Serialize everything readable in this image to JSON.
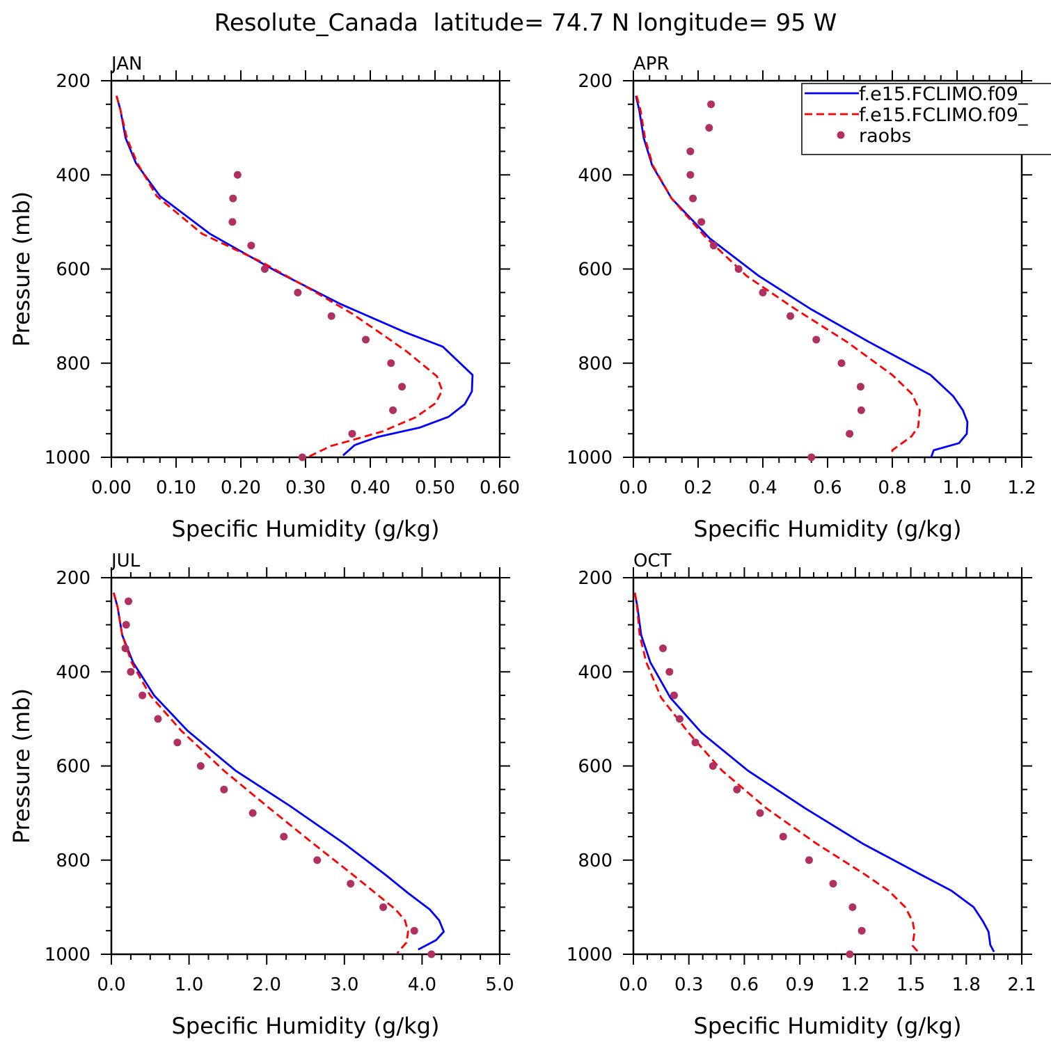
{
  "figure": {
    "title": "Resolute_Canada  latitude= 74.7 N longitude= 95 W"
  },
  "legend": {
    "entries": [
      {
        "label": "f.e15.FCLIMO.f09_",
        "style": "solid",
        "color": "#0000ff"
      },
      {
        "label": "f.e15.FCLIMO.f09_",
        "style": "dashed",
        "color": "#ff0000"
      },
      {
        "label": "raobs",
        "style": "dot",
        "color": "#b03060"
      }
    ]
  },
  "chart_data": [
    {
      "type": "line",
      "title": "JAN",
      "xlabel": "Specific Humidity (g/kg)",
      "ylabel": "Pressure (mb)",
      "xlim": [
        0,
        0.6
      ],
      "ylim": [
        200,
        1000
      ],
      "y_inverted": true,
      "xticks": [
        "0.00",
        "0.10",
        "0.20",
        "0.30",
        "0.40",
        "0.50",
        "0.60"
      ],
      "yticks": [
        "200",
        "400",
        "600",
        "800",
        "1000"
      ],
      "series": [
        {
          "name": "f.e15.FCLIMO.f09_",
          "style": "solid",
          "color": "#0000ff",
          "points": [
            [
              0.008,
              232
            ],
            [
              0.014,
              262
            ],
            [
              0.022,
              322
            ],
            [
              0.038,
              375
            ],
            [
              0.075,
              445
            ],
            [
              0.152,
              525
            ],
            [
              0.255,
              605
            ],
            [
              0.355,
              675
            ],
            [
              0.455,
              735
            ],
            [
              0.512,
              765
            ],
            [
              0.558,
              825
            ],
            [
              0.557,
              860
            ],
            [
              0.546,
              887
            ],
            [
              0.521,
              914
            ],
            [
              0.476,
              937
            ],
            [
              0.411,
              957
            ],
            [
              0.376,
              974
            ],
            [
              0.358,
              996
            ]
          ]
        },
        {
          "name": "f.e15.FCLIMO.f09_",
          "style": "dashed",
          "color": "#ff0000",
          "points": [
            [
              0.008,
              232
            ],
            [
              0.014,
              262
            ],
            [
              0.024,
              322
            ],
            [
              0.04,
              375
            ],
            [
              0.07,
              445
            ],
            [
              0.14,
              525
            ],
            [
              0.232,
              585
            ],
            [
              0.31,
              645
            ],
            [
              0.372,
              695
            ],
            [
              0.425,
              745
            ],
            [
              0.456,
              775
            ],
            [
              0.503,
              828
            ],
            [
              0.511,
              858
            ],
            [
              0.501,
              885
            ],
            [
              0.47,
              915
            ],
            [
              0.419,
              945
            ],
            [
              0.363,
              967
            ],
            [
              0.339,
              976
            ],
            [
              0.306,
              998
            ]
          ]
        },
        {
          "name": "raobs",
          "style": "dot",
          "color": "#b03060",
          "points": [
            [
              0.195,
              400
            ],
            [
              0.188,
              450
            ],
            [
              0.187,
              500
            ],
            [
              0.216,
              550
            ],
            [
              0.237,
              600
            ],
            [
              0.288,
              650
            ],
            [
              0.34,
              700
            ],
            [
              0.393,
              750
            ],
            [
              0.432,
              800
            ],
            [
              0.449,
              850
            ],
            [
              0.435,
              900
            ],
            [
              0.372,
              950
            ],
            [
              0.295,
              1000
            ]
          ]
        }
      ]
    },
    {
      "type": "line",
      "title": "APR",
      "xlabel": "Specific Humidity (g/kg)",
      "ylabel": "",
      "xlim": [
        0,
        1.2
      ],
      "ylim": [
        200,
        1000
      ],
      "y_inverted": true,
      "xticks": [
        "0.0",
        "0.2",
        "0.4",
        "0.6",
        "0.8",
        "1.0",
        "1.2"
      ],
      "yticks": [
        "200",
        "400",
        "600",
        "800",
        "1000"
      ],
      "series": [
        {
          "name": "f.e15.FCLIMO.f09_",
          "style": "solid",
          "color": "#0000ff",
          "points": [
            [
              0.008,
              232
            ],
            [
              0.018,
              262
            ],
            [
              0.032,
              322
            ],
            [
              0.058,
              380
            ],
            [
              0.118,
              450
            ],
            [
              0.236,
              535
            ],
            [
              0.388,
              615
            ],
            [
              0.548,
              685
            ],
            [
              0.728,
              755
            ],
            [
              0.918,
              825
            ],
            [
              0.988,
              870
            ],
            [
              1.018,
              900
            ],
            [
              1.032,
              925
            ],
            [
              1.03,
              950
            ],
            [
              1.006,
              970
            ],
            [
              0.928,
              985
            ],
            [
              0.92,
              1000
            ]
          ]
        },
        {
          "name": "f.e15.FCLIMO.f09_",
          "style": "dashed",
          "color": "#ff0000",
          "points": [
            [
              0.01,
              232
            ],
            [
              0.022,
              262
            ],
            [
              0.036,
              322
            ],
            [
              0.06,
              380
            ],
            [
              0.118,
              450
            ],
            [
              0.22,
              530
            ],
            [
              0.35,
              615
            ],
            [
              0.5,
              685
            ],
            [
              0.66,
              755
            ],
            [
              0.8,
              825
            ],
            [
              0.86,
              865
            ],
            [
              0.885,
              900
            ],
            [
              0.88,
              935
            ],
            [
              0.86,
              955
            ],
            [
              0.83,
              970
            ],
            [
              0.8,
              985
            ],
            [
              0.8,
              998
            ]
          ]
        },
        {
          "name": "raobs",
          "style": "dot",
          "color": "#b03060",
          "points": [
            [
              0.24,
              250
            ],
            [
              0.234,
              300
            ],
            [
              0.176,
              350
            ],
            [
              0.176,
              400
            ],
            [
              0.184,
              450
            ],
            [
              0.21,
              500
            ],
            [
              0.248,
              550
            ],
            [
              0.325,
              600
            ],
            [
              0.4,
              650
            ],
            [
              0.485,
              700
            ],
            [
              0.565,
              750
            ],
            [
              0.643,
              800
            ],
            [
              0.702,
              850
            ],
            [
              0.704,
              900
            ],
            [
              0.668,
              950
            ],
            [
              0.55,
              1000
            ]
          ]
        }
      ]
    },
    {
      "type": "line",
      "title": "JUL",
      "xlabel": "Specific Humidity (g/kg)",
      "ylabel": "Pressure (mb)",
      "xlim": [
        0,
        5.0
      ],
      "ylim": [
        200,
        1000
      ],
      "y_inverted": true,
      "xticks": [
        "0.0",
        "1.0",
        "2.0",
        "3.0",
        "4.0",
        "5.0"
      ],
      "yticks": [
        "200",
        "400",
        "600",
        "800",
        "1000"
      ],
      "series": [
        {
          "name": "f.e15.FCLIMO.f09_",
          "style": "solid",
          "color": "#0000ff",
          "points": [
            [
              0.03,
              232
            ],
            [
              0.08,
              262
            ],
            [
              0.14,
              322
            ],
            [
              0.28,
              380
            ],
            [
              0.55,
              450
            ],
            [
              0.98,
              525
            ],
            [
              1.6,
              610
            ],
            [
              2.3,
              685
            ],
            [
              3.0,
              765
            ],
            [
              3.52,
              830
            ],
            [
              3.82,
              870
            ],
            [
              4.1,
              905
            ],
            [
              4.22,
              928
            ],
            [
              4.28,
              952
            ],
            [
              4.18,
              970
            ],
            [
              3.95,
              990
            ]
          ]
        },
        {
          "name": "f.e15.FCLIMO.f09_",
          "style": "dashed",
          "color": "#ff0000",
          "points": [
            [
              0.03,
              232
            ],
            [
              0.08,
              262
            ],
            [
              0.14,
              322
            ],
            [
              0.26,
              380
            ],
            [
              0.5,
              450
            ],
            [
              0.9,
              525
            ],
            [
              1.45,
              610
            ],
            [
              2.0,
              685
            ],
            [
              2.6,
              765
            ],
            [
              3.1,
              830
            ],
            [
              3.4,
              870
            ],
            [
              3.66,
              905
            ],
            [
              3.78,
              928
            ],
            [
              3.82,
              952
            ],
            [
              3.8,
              975
            ],
            [
              3.72,
              990
            ],
            [
              3.68,
              998
            ]
          ]
        },
        {
          "name": "raobs",
          "style": "dot",
          "color": "#b03060",
          "points": [
            [
              0.22,
              250
            ],
            [
              0.19,
              300
            ],
            [
              0.18,
              350
            ],
            [
              0.25,
              400
            ],
            [
              0.4,
              450
            ],
            [
              0.6,
              500
            ],
            [
              0.85,
              550
            ],
            [
              1.15,
              600
            ],
            [
              1.45,
              650
            ],
            [
              1.82,
              700
            ],
            [
              2.22,
              750
            ],
            [
              2.65,
              800
            ],
            [
              3.08,
              850
            ],
            [
              3.5,
              900
            ],
            [
              3.9,
              950
            ],
            [
              4.12,
              1000
            ]
          ]
        }
      ]
    },
    {
      "type": "line",
      "title": "OCT",
      "xlabel": "Specific Humidity (g/kg)",
      "ylabel": "",
      "xlim": [
        0,
        2.1
      ],
      "ylim": [
        200,
        1000
      ],
      "y_inverted": true,
      "xticks": [
        "0.0",
        "0.3",
        "0.6",
        "0.9",
        "1.2",
        "1.5",
        "1.8",
        "2.1"
      ],
      "yticks": [
        "200",
        "400",
        "600",
        "800",
        "1000"
      ],
      "series": [
        {
          "name": "f.e15.FCLIMO.f09_",
          "style": "solid",
          "color": "#0000ff",
          "points": [
            [
              0.008,
              232
            ],
            [
              0.022,
              262
            ],
            [
              0.042,
              322
            ],
            [
              0.092,
              380
            ],
            [
              0.2,
              455
            ],
            [
              0.37,
              530
            ],
            [
              0.62,
              610
            ],
            [
              0.93,
              690
            ],
            [
              1.24,
              765
            ],
            [
              1.55,
              830
            ],
            [
              1.72,
              865
            ],
            [
              1.84,
              900
            ],
            [
              1.89,
              930
            ],
            [
              1.92,
              952
            ],
            [
              1.93,
              980
            ],
            [
              1.95,
              995
            ]
          ]
        },
        {
          "name": "f.e15.FCLIMO.f09_",
          "style": "dashed",
          "color": "#ff0000",
          "points": [
            [
              0.008,
              232
            ],
            [
              0.02,
              262
            ],
            [
              0.034,
              322
            ],
            [
              0.07,
              380
            ],
            [
              0.15,
              455
            ],
            [
              0.3,
              530
            ],
            [
              0.48,
              610
            ],
            [
              0.72,
              690
            ],
            [
              0.99,
              765
            ],
            [
              1.25,
              830
            ],
            [
              1.38,
              865
            ],
            [
              1.47,
              900
            ],
            [
              1.51,
              930
            ],
            [
              1.52,
              952
            ],
            [
              1.51,
              982
            ],
            [
              1.54,
              995
            ]
          ]
        },
        {
          "name": "raobs",
          "style": "dot",
          "color": "#b03060",
          "points": [
            [
              0.16,
              350
            ],
            [
              0.195,
              400
            ],
            [
              0.22,
              450
            ],
            [
              0.25,
              500
            ],
            [
              0.335,
              550
            ],
            [
              0.43,
              600
            ],
            [
              0.56,
              650
            ],
            [
              0.685,
              700
            ],
            [
              0.81,
              750
            ],
            [
              0.95,
              800
            ],
            [
              1.08,
              850
            ],
            [
              1.185,
              900
            ],
            [
              1.235,
              950
            ],
            [
              1.17,
              1000
            ]
          ]
        }
      ]
    }
  ]
}
